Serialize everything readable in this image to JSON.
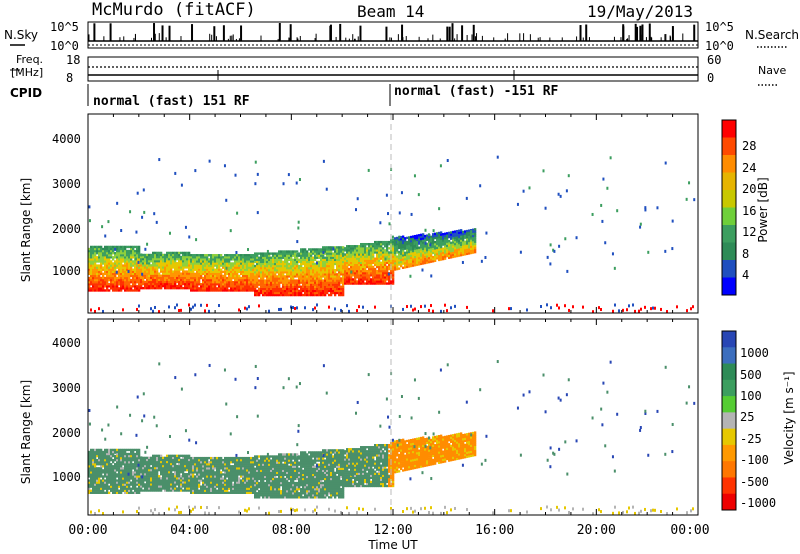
{
  "header": {
    "station": "McMurdo (fitACF)",
    "beam": "Beam 14",
    "date": "19/May/2013"
  },
  "top_panels": {
    "nsky_label": "N.Sky",
    "nsearch_label": "N.Search",
    "noise_ticks_left": [
      "10^5",
      "10^0"
    ],
    "noise_ticks_right": [
      "10^5",
      "10^0"
    ],
    "freq_label_1": "Freq.",
    "freq_label_2": "[MHz]",
    "freq_ticks": [
      "18",
      "8"
    ],
    "nave_label": "Nave",
    "nave_ticks": [
      "60",
      "0"
    ],
    "cpid_label": "CPID",
    "cpid_1": "normal (fast) 151 RF",
    "cpid_2": "normal (fast) -151 RF"
  },
  "chart_data": [
    {
      "type": "heatmap",
      "name": "power",
      "ylabel": "Slant Range [km]",
      "yticks": [
        "4000",
        "3000",
        "2000",
        "1000"
      ],
      "xlim": [
        0,
        24
      ],
      "ylim": [
        180,
        4500
      ],
      "colorbar": {
        "label": "Power [dB]",
        "ticks": [
          "28",
          "24",
          "20",
          "16",
          "12",
          "8",
          "4"
        ],
        "colors": [
          "#ff0000",
          "#ff4a00",
          "#ff8c00",
          "#e6b400",
          "#c8c800",
          "#6fcf3a",
          "#3c9e5f",
          "#2e8b57",
          "#1f4fbf",
          "#0000ff"
        ]
      }
    },
    {
      "type": "heatmap",
      "name": "velocity",
      "ylabel": "Slant Range [km]",
      "yticks": [
        "4000",
        "3000",
        "2000",
        "1000"
      ],
      "xlim": [
        0,
        24
      ],
      "ylim": [
        180,
        4500
      ],
      "colorbar": {
        "label": "Velocity [m s⁻¹]",
        "ticks": [
          "1000",
          "500",
          "100",
          "25",
          "-25",
          "-100",
          "-500",
          "-1000"
        ],
        "colors": [
          "#2846b4",
          "#3c6ebe",
          "#2e8b57",
          "#3c9e5f",
          "#55cc33",
          "#b4b4b4",
          "#e6c800",
          "#ff9900",
          "#ff7700",
          "#ff3300",
          "#ee0000"
        ]
      }
    }
  ],
  "x_axis": {
    "ticks": [
      "00:00",
      "04:00",
      "08:00",
      "12:00",
      "16:00",
      "20:00",
      "00:00"
    ],
    "label": "Time UT"
  }
}
